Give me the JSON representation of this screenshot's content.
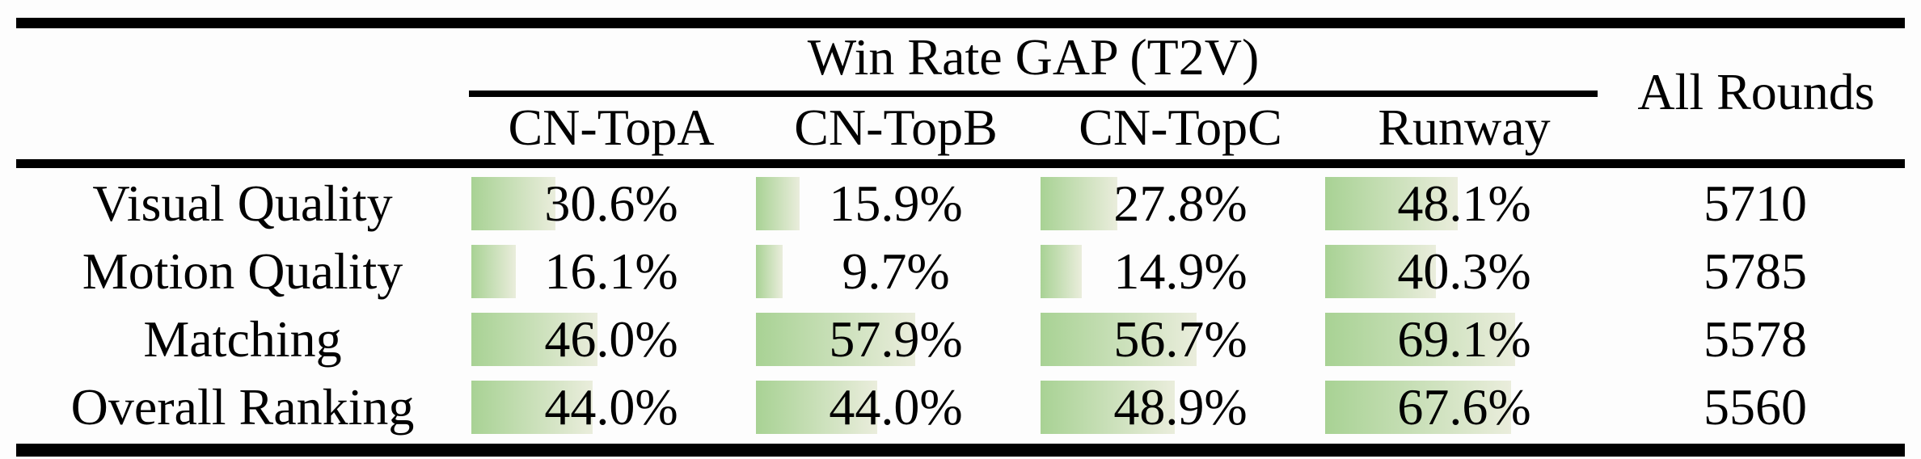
{
  "table": {
    "group_header": "Win Rate GAP (T2V)",
    "all_rounds_header": "All Rounds",
    "columns": [
      "CN-TopA",
      "CN-TopB",
      "CN-TopC",
      "Runway"
    ],
    "rows": [
      {
        "label": "Visual Quality",
        "values": [
          30.6,
          15.9,
          27.8,
          48.1
        ],
        "display": [
          "30.6%",
          "15.9%",
          "27.8%",
          "48.1%"
        ],
        "all_rounds": "5710"
      },
      {
        "label": "Motion Quality",
        "values": [
          16.1,
          9.7,
          14.9,
          40.3
        ],
        "display": [
          "16.1%",
          "9.7%",
          "14.9%",
          "40.3%"
        ],
        "all_rounds": "5785"
      },
      {
        "label": "Matching",
        "values": [
          46.0,
          57.9,
          56.7,
          69.1
        ],
        "display": [
          "46.0%",
          "57.9%",
          "56.7%",
          "69.1%"
        ],
        "all_rounds": "5578"
      },
      {
        "label": "Overall Ranking",
        "values": [
          44.0,
          44.0,
          48.9,
          67.6
        ],
        "display": [
          "44.0%",
          "44.0%",
          "48.9%",
          "67.6%"
        ],
        "all_rounds": "5560"
      }
    ]
  },
  "colors": {
    "bar_gradient_start": "#a8d294",
    "bar_gradient_end": "#eaeddc",
    "rule": "#000000",
    "text": "#000000",
    "background": "#fdfdfd"
  },
  "chart_data": {
    "type": "bar",
    "title": "Win Rate GAP (T2V)",
    "categories": [
      "Visual Quality",
      "Motion Quality",
      "Matching",
      "Overall Ranking"
    ],
    "series": [
      {
        "name": "CN-TopA",
        "values": [
          30.6,
          16.1,
          46.0,
          44.0
        ]
      },
      {
        "name": "CN-TopB",
        "values": [
          15.9,
          9.7,
          57.9,
          44.0
        ]
      },
      {
        "name": "CN-TopC",
        "values": [
          27.8,
          14.9,
          56.7,
          48.9
        ]
      },
      {
        "name": "Runway",
        "values": [
          48.1,
          40.3,
          69.1,
          67.6
        ]
      }
    ],
    "all_rounds": [
      5710,
      5785,
      5578,
      5560
    ],
    "value_unit": "%",
    "xlim": [
      0,
      100
    ],
    "bar_orientation": "horizontal-inline",
    "legend_position": "none"
  }
}
